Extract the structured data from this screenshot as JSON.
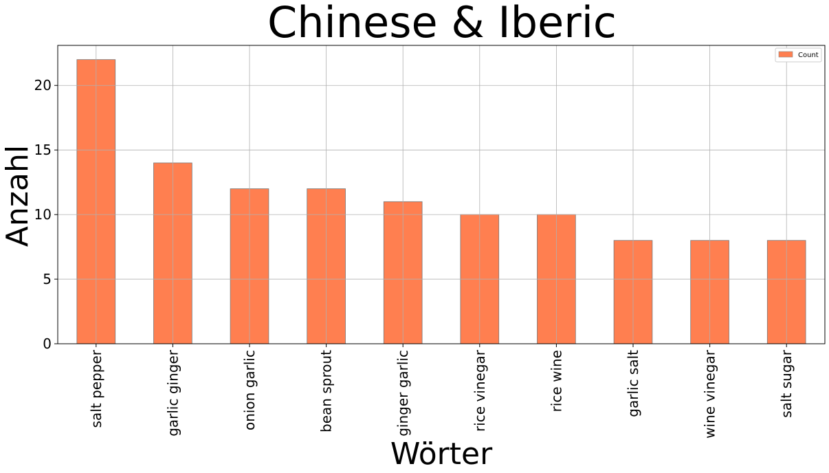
{
  "chart_data": {
    "type": "bar",
    "title": "Chinese & Iberic",
    "xlabel": "Wörter",
    "ylabel": "Anzahl",
    "categories": [
      "salt pepper",
      "garlic ginger",
      "onion garlic",
      "bean sprout",
      "ginger garlic",
      "rice vinegar",
      "rice wine",
      "garlic salt",
      "wine vinegar",
      "salt sugar"
    ],
    "series": [
      {
        "name": "Count",
        "values": [
          22,
          14,
          12,
          12,
          11,
          10,
          10,
          8,
          8,
          8
        ],
        "color": "#ff7f50"
      }
    ],
    "ylim": [
      0,
      23.1
    ],
    "yticks": [
      0,
      5,
      10,
      15,
      20
    ],
    "grid": true,
    "legend": "top-right"
  }
}
